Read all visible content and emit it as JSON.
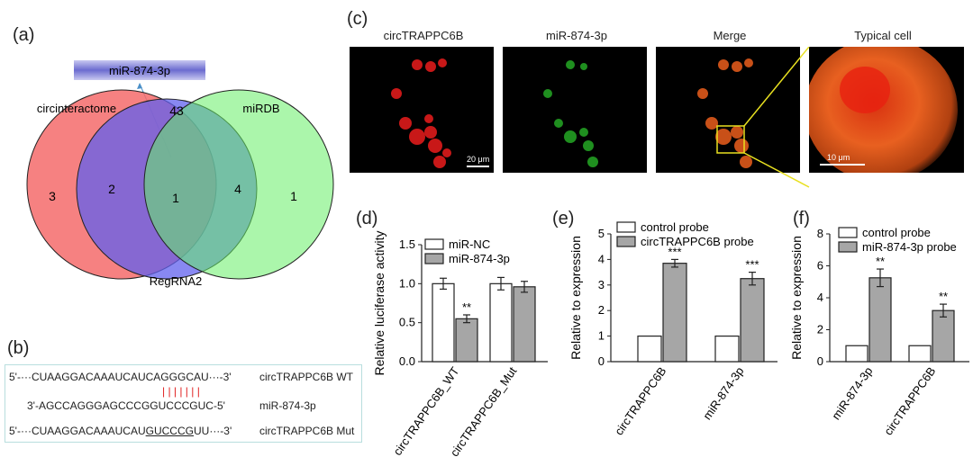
{
  "panels": {
    "a": "(a)",
    "b": "(b)",
    "c": "(c)",
    "d": "(d)",
    "e": "(e)",
    "f": "(f)"
  },
  "venn": {
    "mirna_label": "miR-874-3p",
    "sets": [
      "circinteractome",
      "miRDB",
      "RegRNA2"
    ],
    "counts": {
      "only_circ": "3",
      "circ_reg": "2",
      "center": "1",
      "only_reg_top": "43",
      "mirdb_reg": "4",
      "only_mirdb": "1"
    },
    "colors": {
      "circinteractome": "#f56b6b",
      "RegRNA2": "#6f6ff2",
      "miRDB": "#6ef26e"
    }
  },
  "micro": {
    "titles": [
      "circTRAPPC6B",
      "miR-874-3p",
      "Merge",
      "Typical cell"
    ],
    "title_colors": [
      "#e0201a",
      "#2fbf2f",
      "#222222",
      "#222222"
    ],
    "scale_bars": [
      "20 μm",
      "10 μm"
    ]
  },
  "sequence": {
    "wt": {
      "prefix": "5'-···CUAAGGACAAAUCAUCAGGGCAU···-3'",
      "label": "circTRAPPC6B WT"
    },
    "mir": {
      "seq": "3'-AGCCAGGGAGCCCGGUCCCGUC-5'",
      "label": "miR-874-3p"
    },
    "mut": {
      "pre": "5'-···CUAAGGACAAAUCAU",
      "underlined": "GUCCCG",
      "post": "UU···-3'",
      "label": "circTRAPPC6B Mut"
    },
    "pairing": "| | | | | | |"
  },
  "chart_data": [
    {
      "panel": "d",
      "type": "bar",
      "categories": [
        "circTRAPPC6B_WT",
        "circTRAPPC6B_Mut"
      ],
      "series": [
        {
          "name": "miR-NC",
          "values": [
            1.0,
            1.0
          ],
          "errors": [
            0.07,
            0.08
          ],
          "color": "#ffffff"
        },
        {
          "name": "miR-874-3p",
          "values": [
            0.55,
            0.96
          ],
          "errors": [
            0.05,
            0.07
          ],
          "color": "#a6a6a6"
        }
      ],
      "ylabel": "Relative luciferase activity",
      "ylim": [
        0,
        1.5
      ],
      "yticks": [
        "0.0",
        "0.5",
        "1.0",
        "1.5"
      ],
      "annotations": [
        {
          "category": 0,
          "series": 1,
          "text": "**"
        }
      ],
      "legend": "top-right"
    },
    {
      "panel": "e",
      "type": "bar",
      "categories": [
        "circTRAPPC6B",
        "miR-874-3p"
      ],
      "series": [
        {
          "name": "control probe",
          "values": [
            1.0,
            1.0
          ],
          "errors": [
            0,
            0
          ],
          "color": "#ffffff"
        },
        {
          "name": "circTRAPPC6B probe",
          "values": [
            3.85,
            3.25
          ],
          "errors": [
            0.15,
            0.25
          ],
          "color": "#a6a6a6"
        }
      ],
      "ylabel": "Relative to expression",
      "ylim": [
        0,
        5
      ],
      "yticks": [
        "0",
        "1",
        "2",
        "3",
        "4",
        "5"
      ],
      "annotations": [
        {
          "category": 0,
          "series": 1,
          "text": "***"
        },
        {
          "category": 1,
          "series": 1,
          "text": "***"
        }
      ],
      "legend": "top-left"
    },
    {
      "panel": "f",
      "type": "bar",
      "categories": [
        "miR-874-3p",
        "circTRAPPC6B"
      ],
      "series": [
        {
          "name": "control probe",
          "values": [
            1.0,
            1.0
          ],
          "errors": [
            0,
            0
          ],
          "color": "#ffffff"
        },
        {
          "name": "miR-874-3p probe",
          "values": [
            5.25,
            3.2
          ],
          "errors": [
            0.55,
            0.4
          ],
          "color": "#a6a6a6"
        }
      ],
      "ylabel": "Relative to expression",
      "ylim": [
        0,
        8
      ],
      "yticks": [
        "0",
        "2",
        "4",
        "6",
        "8"
      ],
      "annotations": [
        {
          "category": 0,
          "series": 1,
          "text": "**"
        },
        {
          "category": 1,
          "series": 1,
          "text": "**"
        }
      ],
      "legend": "top-left"
    }
  ]
}
